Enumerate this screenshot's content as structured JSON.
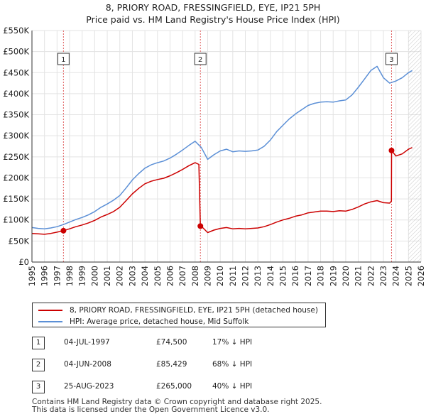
{
  "chart_data": {
    "type": "line",
    "title": "8, PRIORY ROAD, FRESSINGFIELD, EYE, IP21 5PH",
    "subtitle": "Price paid vs. HM Land Registry's House Price Index (HPI)",
    "xlabel": "",
    "ylabel": "",
    "xlim": [
      1995,
      2026
    ],
    "ylim": [
      0,
      550000
    ],
    "x_ticks": [
      "1995",
      "1996",
      "1997",
      "1998",
      "1999",
      "2000",
      "2001",
      "2002",
      "2003",
      "2004",
      "2005",
      "2006",
      "2007",
      "2008",
      "2009",
      "2010",
      "2011",
      "2012",
      "2013",
      "2014",
      "2015",
      "2016",
      "2017",
      "2018",
      "2019",
      "2020",
      "2021",
      "2022",
      "2023",
      "2024",
      "2025",
      "2026"
    ],
    "y_ticks": [
      {
        "value": 0,
        "label": "£0"
      },
      {
        "value": 50000,
        "label": "£50K"
      },
      {
        "value": 100000,
        "label": "£100K"
      },
      {
        "value": 150000,
        "label": "£150K"
      },
      {
        "value": 200000,
        "label": "£200K"
      },
      {
        "value": 250000,
        "label": "£250K"
      },
      {
        "value": 300000,
        "label": "£300K"
      },
      {
        "value": 350000,
        "label": "£350K"
      },
      {
        "value": 400000,
        "label": "£400K"
      },
      {
        "value": 450000,
        "label": "£450K"
      },
      {
        "value": 500000,
        "label": "£500K"
      },
      {
        "value": 550000,
        "label": "£550K"
      }
    ],
    "grid": true,
    "future_hatch_from": 2025.0,
    "series": [
      {
        "name": "8, PRIORY ROAD, FRESSINGFIELD, EYE, IP21 5PH (detached house)",
        "color": "#cc0000",
        "x": [
          1995.0,
          1995.5,
          1996.0,
          1996.5,
          1997.0,
          1997.5,
          1998.0,
          1998.5,
          1999.0,
          1999.5,
          2000.0,
          2000.5,
          2001.0,
          2001.5,
          2002.0,
          2002.5,
          2003.0,
          2003.5,
          2004.0,
          2004.5,
          2005.0,
          2005.5,
          2006.0,
          2006.5,
          2007.0,
          2007.5,
          2008.0,
          2008.3,
          2008.42,
          2008.6,
          2009.0,
          2009.5,
          2010.0,
          2010.5,
          2011.0,
          2011.5,
          2012.0,
          2012.5,
          2013.0,
          2013.5,
          2014.0,
          2014.5,
          2015.0,
          2015.5,
          2016.0,
          2016.5,
          2017.0,
          2017.5,
          2018.0,
          2018.5,
          2019.0,
          2019.5,
          2020.0,
          2020.5,
          2021.0,
          2021.5,
          2022.0,
          2022.5,
          2023.0,
          2023.5,
          2023.64,
          2023.65,
          2024.0,
          2024.5,
          2025.0,
          2025.3
        ],
        "values": [
          68000,
          67000,
          66000,
          68000,
          71000,
          74500,
          79000,
          84000,
          88000,
          93000,
          99000,
          107000,
          113000,
          120000,
          130000,
          146000,
          162000,
          175000,
          186000,
          192000,
          196000,
          199000,
          205000,
          212000,
          220000,
          229000,
          236000,
          232000,
          85429,
          82000,
          70000,
          76000,
          80000,
          82000,
          79000,
          80000,
          79000,
          80000,
          81000,
          84000,
          89000,
          95000,
          100000,
          104000,
          109000,
          112000,
          117000,
          119000,
          121000,
          121000,
          120000,
          122000,
          121000,
          125000,
          131000,
          138000,
          143000,
          146000,
          141000,
          140000,
          145000,
          265000,
          252000,
          257000,
          268000,
          272000
        ]
      },
      {
        "name": "HPI: Average price, detached house, Mid Suffolk",
        "color": "#5b8fd6",
        "x": [
          1995.0,
          1995.5,
          1996.0,
          1996.5,
          1997.0,
          1997.5,
          1998.0,
          1998.5,
          1999.0,
          1999.5,
          2000.0,
          2000.5,
          2001.0,
          2001.5,
          2002.0,
          2002.5,
          2003.0,
          2003.5,
          2004.0,
          2004.5,
          2005.0,
          2005.5,
          2006.0,
          2006.5,
          2007.0,
          2007.5,
          2008.0,
          2008.5,
          2009.0,
          2009.5,
          2010.0,
          2010.5,
          2011.0,
          2011.5,
          2012.0,
          2012.5,
          2013.0,
          2013.5,
          2014.0,
          2014.5,
          2015.0,
          2015.5,
          2016.0,
          2016.5,
          2017.0,
          2017.5,
          2018.0,
          2018.5,
          2019.0,
          2019.5,
          2020.0,
          2020.5,
          2021.0,
          2021.5,
          2022.0,
          2022.5,
          2023.0,
          2023.5,
          2024.0,
          2024.5,
          2025.0,
          2025.3
        ],
        "values": [
          82000,
          80000,
          79000,
          81000,
          84000,
          89000,
          95000,
          101000,
          106000,
          112000,
          120000,
          130000,
          138000,
          147000,
          158000,
          176000,
          195000,
          210000,
          223000,
          231000,
          236000,
          240000,
          247000,
          256000,
          266000,
          277000,
          287000,
          272000,
          244000,
          255000,
          264000,
          268000,
          262000,
          264000,
          263000,
          264000,
          266000,
          275000,
          290000,
          310000,
          325000,
          340000,
          352000,
          362000,
          372000,
          377000,
          380000,
          381000,
          380000,
          383000,
          385000,
          397000,
          415000,
          435000,
          455000,
          465000,
          438000,
          425000,
          430000,
          438000,
          450000,
          455000
        ]
      }
    ],
    "sales": [
      {
        "id": "1",
        "x": 1997.51,
        "value": 74500
      },
      {
        "id": "2",
        "x": 2008.42,
        "value": 85429
      },
      {
        "id": "3",
        "x": 2023.65,
        "value": 265000
      }
    ]
  },
  "legend": {
    "property_label": "8, PRIORY ROAD, FRESSINGFIELD, EYE, IP21 5PH (detached house)",
    "hpi_label": "HPI: Average price, detached house, Mid Suffolk"
  },
  "transactions": [
    {
      "num": "1",
      "date": "04-JUL-1997",
      "price": "£74,500",
      "hpi": "17% ↓ HPI"
    },
    {
      "num": "2",
      "date": "04-JUN-2008",
      "price": "£85,429",
      "hpi": "68% ↓ HPI"
    },
    {
      "num": "3",
      "date": "25-AUG-2023",
      "price": "£265,000",
      "hpi": "40% ↓ HPI"
    }
  ],
  "footer": {
    "line1": "Contains HM Land Registry data © Crown copyright and database right 2025.",
    "line2": "This data is licensed under the Open Government Licence v3.0."
  }
}
